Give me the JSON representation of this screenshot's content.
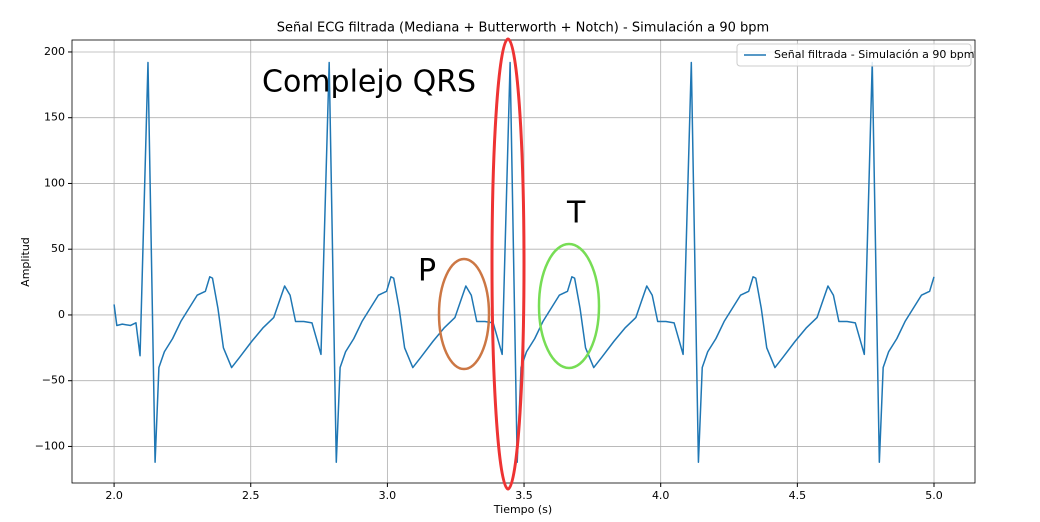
{
  "chart_data": {
    "type": "line",
    "title": "Señal ECG filtrada (Mediana + Butterworth + Notch) - Simulación a 90 bpm",
    "xlabel": "Tiempo (s)",
    "ylabel": "Amplitud",
    "x": [
      2.0,
      2.01,
      2.03,
      2.06,
      2.08,
      2.095,
      2.124,
      2.15,
      2.164,
      2.184,
      2.214,
      2.244,
      2.274,
      2.304,
      2.334,
      2.35,
      2.36,
      2.38,
      2.4,
      2.43,
      2.46,
      2.504,
      2.544,
      2.584,
      2.604,
      2.624,
      2.644,
      2.664,
      2.694,
      2.724,
      2.757,
      2.787,
      2.813,
      2.827,
      2.847,
      2.877,
      2.907,
      2.937,
      2.967,
      2.997,
      3.013,
      3.023,
      3.043,
      3.063,
      3.093,
      3.123,
      3.167,
      3.207,
      3.247,
      3.267,
      3.287,
      3.307,
      3.327,
      3.357,
      3.387,
      3.42,
      3.449,
      3.475,
      3.489,
      3.509,
      3.539,
      3.569,
      3.599,
      3.629,
      3.659,
      3.675,
      3.685,
      3.705,
      3.725,
      3.755,
      3.785,
      3.829,
      3.869,
      3.909,
      3.929,
      3.949,
      3.969,
      3.989,
      4.019,
      4.049,
      4.082,
      4.112,
      4.138,
      4.152,
      4.172,
      4.202,
      4.232,
      4.262,
      4.292,
      4.322,
      4.338,
      4.348,
      4.368,
      4.388,
      4.418,
      4.448,
      4.492,
      4.532,
      4.572,
      4.592,
      4.612,
      4.632,
      4.652,
      4.682,
      4.712,
      4.745,
      4.774,
      4.8,
      4.814,
      4.834,
      4.864,
      4.894,
      4.924,
      4.954,
      4.984,
      5.0
    ],
    "series": [
      {
        "name": "Señal filtrada - Simulación a 90 bpm",
        "color": "#1f77b4",
        "values": [
          8,
          -8,
          -7,
          -8,
          -6,
          -31,
          192,
          -112,
          -40,
          -28,
          -18,
          -5,
          5,
          15,
          18,
          29,
          28,
          5,
          -25,
          -40,
          -32,
          -20,
          -10,
          -2,
          10,
          22,
          15,
          -5,
          -5,
          -6,
          -30,
          192,
          -112,
          -40,
          -28,
          -18,
          -5,
          5,
          15,
          18,
          29,
          28,
          5,
          -25,
          -40,
          -32,
          -20,
          -10,
          -2,
          10,
          22,
          15,
          -5,
          -5,
          -6,
          -30,
          192,
          -112,
          -40,
          -28,
          -18,
          -5,
          5,
          15,
          18,
          29,
          28,
          5,
          -25,
          -40,
          -32,
          -20,
          -10,
          -2,
          10,
          22,
          15,
          -5,
          -5,
          -6,
          -30,
          192,
          -112,
          -40,
          -28,
          -18,
          -5,
          5,
          15,
          18,
          29,
          28,
          5,
          -25,
          -40,
          -32,
          -20,
          -10,
          -2,
          10,
          22,
          15,
          -5,
          -5,
          -6,
          -30,
          192,
          -112,
          -40,
          -28,
          -18,
          -5,
          5,
          15,
          18,
          29
        ]
      }
    ],
    "xlim": [
      1.846,
      5.15
    ],
    "ylim": [
      -127.8,
      209.1
    ],
    "xticks": [
      {
        "value": 2,
        "label": "2.0"
      },
      2.5,
      {
        "value": 3,
        "label": "3.0"
      },
      3.5,
      {
        "value": 4,
        "label": "4.0"
      },
      4.5,
      {
        "value": 5,
        "label": "5.0"
      }
    ],
    "yticks": [
      {
        "value": -100,
        "label": "−100"
      },
      {
        "value": -50,
        "label": "−50"
      },
      0,
      50,
      100,
      150,
      200
    ],
    "grid": true,
    "legend": "upper right",
    "annotations": [
      {
        "text": "Complejo QRS",
        "color": "#ee3333"
      },
      {
        "text": "P",
        "color": "#cc7744"
      },
      {
        "text": "T",
        "color": "#77dd55"
      }
    ]
  }
}
